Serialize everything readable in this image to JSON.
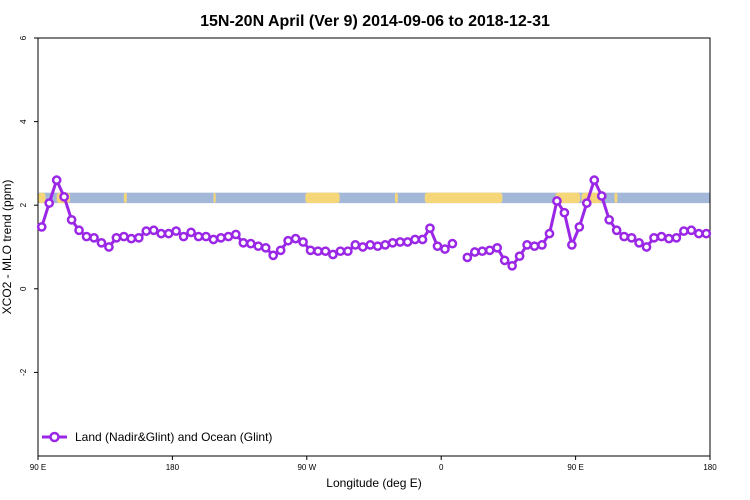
{
  "chart_data": {
    "type": "line",
    "title": "15N-20N April (Ver 9)   2014-09-06 to 2018-12-31",
    "xlabel": "Longitude (deg E)",
    "ylabel": "XCO2 - MLO trend (ppm)",
    "xlim": [
      90,
      180
    ],
    "ylim": [
      -4,
      6
    ],
    "x_ticks": [
      {
        "value": 90,
        "label": "90 E"
      },
      {
        "value": 108,
        "label": "180"
      },
      {
        "value": 126,
        "label": "90 W"
      },
      {
        "value": 144,
        "label": "0"
      },
      {
        "value": 162,
        "label": "90 E"
      },
      {
        "value": 180,
        "label": "180"
      }
    ],
    "y_ticks": [
      {
        "value": -2,
        "label": "-2"
      },
      {
        "value": 0,
        "label": "0"
      },
      {
        "value": 2,
        "label": "2"
      },
      {
        "value": 4,
        "label": "4"
      },
      {
        "value": 6,
        "label": "6"
      }
    ],
    "grid": false,
    "legend_position": "bottom-left",
    "map_band": {
      "y_min": 2.05,
      "y_max": 2.3,
      "ocean_color": "#a3b8d8",
      "land_color": "#f5d77a"
    },
    "series": [
      {
        "name": "Land (Nadir&Glint) and Ocean (Glint)",
        "color": "#9b27e6",
        "x": [
          90.5,
          91.5,
          92.5,
          93.5,
          94.5,
          95.5,
          96.5,
          97.5,
          98.5,
          99.5,
          100.5,
          101.5,
          102.5,
          103.5,
          104.5,
          105.5,
          106.5,
          107.5,
          108.5,
          109.5,
          110.5,
          111.5,
          112.5,
          113.5,
          114.5,
          115.5,
          116.5,
          117.5,
          118.5,
          119.5,
          120.5,
          121.5,
          122.5,
          123.5,
          124.5,
          125.5,
          126.5,
          127.5,
          128.5,
          129.5,
          130.5,
          131.5,
          132.5,
          133.5,
          134.5,
          135.5,
          136.5,
          137.5,
          138.5,
          139.5,
          140.5,
          141.5,
          142.5,
          143.5,
          144.5,
          145.5,
          146.5,
          null,
          147.5,
          148.5,
          149.5,
          150.5,
          151.5,
          152.5,
          153.5,
          154.5,
          155.5,
          156.5,
          157.5,
          158.5,
          159.5,
          160.5,
          161.5,
          162.5,
          163.5,
          164.5,
          165.5,
          166.5,
          167.5,
          168.5,
          169.5,
          170.5,
          171.5,
          172.5,
          173.5,
          174.5,
          175.5,
          176.5,
          177.5,
          178.5,
          179.5
        ],
        "values": [
          1.48,
          2.05,
          2.6,
          2.2,
          1.65,
          1.4,
          1.25,
          1.22,
          1.1,
          1.0,
          1.22,
          1.25,
          1.2,
          1.22,
          1.38,
          1.4,
          1.32,
          1.32,
          1.38,
          1.25,
          1.35,
          1.25,
          1.25,
          1.18,
          1.22,
          1.25,
          1.3,
          1.1,
          1.08,
          1.02,
          0.98,
          0.8,
          0.92,
          1.15,
          1.2,
          1.12,
          0.92,
          0.9,
          0.9,
          0.82,
          0.9,
          0.9,
          1.05,
          1.0,
          1.05,
          1.02,
          1.05,
          1.1,
          1.12,
          1.12,
          1.18,
          1.18,
          1.45,
          1.02,
          0.95,
          1.08,
          null,
          null,
          0.75,
          0.88,
          0.9,
          0.92,
          0.98,
          0.68,
          0.55,
          0.78,
          1.05,
          1.02,
          1.05,
          1.32,
          2.1,
          1.82,
          1.05,
          1.48,
          2.05,
          2.6,
          2.22,
          1.65,
          1.4,
          1.25,
          1.22,
          1.1,
          1.0,
          1.22,
          1.25,
          1.2,
          1.22,
          1.38,
          1.4,
          1.32,
          1.32
        ]
      }
    ]
  }
}
